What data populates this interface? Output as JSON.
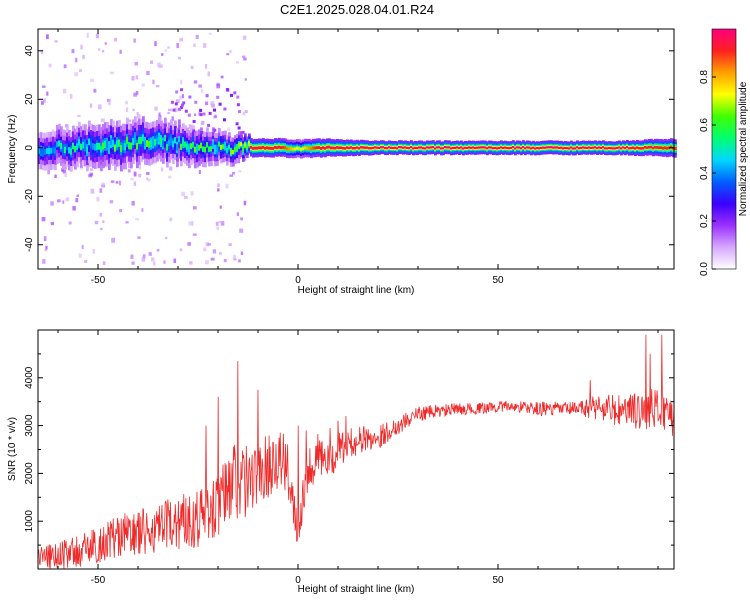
{
  "title": "C2E1.2025.028.04.01.R24",
  "chart_data": [
    {
      "type": "heatmap",
      "name": "spectrogram",
      "xlabel": "Height of straight line (km)",
      "ylabel": "Frequency (Hz)",
      "xlim": [
        -65,
        94
      ],
      "ylim": [
        -50,
        49
      ],
      "xticks": [
        -50,
        0,
        50
      ],
      "yticks": [
        -40,
        -20,
        0,
        20,
        40
      ],
      "colorbar": {
        "label": "Normalized spectral amplitude",
        "range": [
          0,
          1
        ],
        "ticks": [
          "0.0",
          "0.2",
          "0.4",
          "0.6",
          "0.8"
        ],
        "colors": [
          "#ffffff",
          "#d6a8ff",
          "#9b30ff",
          "#3a00ff",
          "#0060ff",
          "#00d8ff",
          "#00ff70",
          "#40ff00",
          "#ffff00",
          "#ffa000",
          "#ff2020",
          "#ff0080"
        ]
      },
      "ridge": {
        "x": [
          -65,
          -55,
          -45,
          -35,
          -25,
          -15,
          -12,
          -5,
          0,
          5,
          20,
          40,
          60,
          80,
          94
        ],
        "center_hz": [
          0,
          0.5,
          1.5,
          2.5,
          1.0,
          -0.5,
          0,
          0,
          -0.5,
          0,
          0,
          0,
          0,
          0,
          0
        ],
        "halfwidth_hz": [
          4,
          4.5,
          5,
          4.5,
          4,
          3,
          2,
          2,
          2,
          2,
          1.5,
          1.5,
          1.5,
          1.5,
          2
        ],
        "peak_amplitude": [
          0.45,
          0.5,
          0.55,
          0.55,
          0.55,
          0.6,
          0.95,
          0.95,
          0.7,
          0.95,
          1.0,
          1.0,
          1.0,
          1.0,
          0.9
        ]
      }
    },
    {
      "type": "line",
      "name": "snr",
      "xlabel": "Height of straight line (km)",
      "ylabel": "SNR (10 * v/v)",
      "xlim": [
        -65,
        94
      ],
      "ylim": [
        0,
        5000
      ],
      "xticks": [
        -50,
        0,
        50
      ],
      "yticks": [
        1000,
        2000,
        3000,
        4000
      ],
      "color": "#ee2a2a",
      "x": [
        -65,
        -60,
        -55,
        -50,
        -45,
        -40,
        -35,
        -30,
        -25,
        -20,
        -17,
        -15,
        -13,
        -10,
        -7,
        -5,
        -2,
        0,
        2,
        5,
        8,
        10,
        15,
        20,
        25,
        30,
        35,
        40,
        45,
        50,
        55,
        60,
        65,
        70,
        75,
        80,
        85,
        90,
        94
      ],
      "values": [
        250,
        300,
        350,
        500,
        700,
        750,
        800,
        1000,
        1100,
        1300,
        1700,
        2000,
        1800,
        2000,
        2200,
        2400,
        1900,
        800,
        2000,
        2400,
        2200,
        2500,
        2700,
        2750,
        3000,
        3250,
        3300,
        3350,
        3350,
        3400,
        3400,
        3350,
        3350,
        3350,
        3400,
        3300,
        3300,
        3350,
        3200
      ],
      "noise": [
        250,
        300,
        350,
        400,
        450,
        500,
        550,
        600,
        650,
        650,
        900,
        1000,
        800,
        600,
        700,
        700,
        600,
        400,
        500,
        450,
        400,
        350,
        300,
        250,
        200,
        150,
        150,
        120,
        120,
        120,
        120,
        150,
        150,
        150,
        300,
        350,
        400,
        450,
        450
      ],
      "spikes": [
        [
          -15,
          4350
        ],
        [
          -20,
          3600
        ],
        [
          -23,
          3000
        ],
        [
          -10,
          3750
        ],
        [
          0,
          3000
        ],
        [
          2,
          2900
        ],
        [
          8,
          2950
        ],
        [
          10,
          3100
        ],
        [
          12,
          3200
        ],
        [
          87,
          4900
        ],
        [
          91,
          4900
        ],
        [
          88,
          4500
        ],
        [
          73,
          3950
        ]
      ]
    }
  ]
}
